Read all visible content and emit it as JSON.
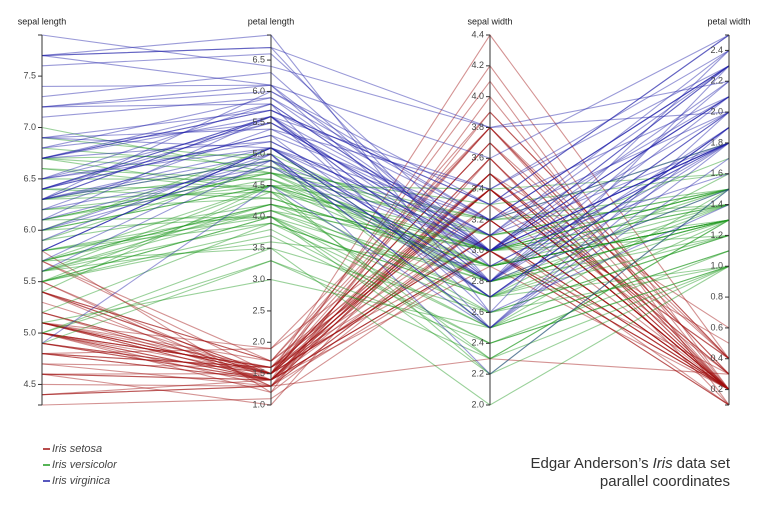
{
  "chart_data": {
    "type": "parallel",
    "title": [
      "Edgar Anderson’s",
      "Iris",
      "data set"
    ],
    "subtitle": "parallel coordinates",
    "dimensions": [
      {
        "name": "sepal length",
        "lim": [
          4.3,
          7.9
        ],
        "ticks": [
          4.5,
          {
            "value": 5,
            "label": "5.0"
          },
          5.5,
          {
            "value": 6,
            "label": "6.0"
          },
          6.5,
          {
            "value": 7,
            "label": "7.0"
          },
          7.5
        ]
      },
      {
        "name": "petal length",
        "lim": [
          1,
          6.9
        ],
        "ticks": [
          {
            "value": 1,
            "label": "1.0"
          },
          1.5,
          {
            "value": 2,
            "label": "2.0"
          },
          2.5,
          {
            "value": 3,
            "label": "3.0"
          },
          3.5,
          {
            "value": 4,
            "label": "4.0"
          },
          4.5,
          {
            "value": 5,
            "label": "5.0"
          },
          5.5,
          {
            "value": 6,
            "label": "6.0"
          },
          6.5
        ]
      },
      {
        "name": "sepal width",
        "lim": [
          2,
          4.4
        ],
        "ticks": [
          {
            "value": 2,
            "label": "2.0"
          },
          2.2,
          2.4,
          2.6,
          2.8,
          {
            "value": 3,
            "label": "3.0"
          },
          3.2,
          3.4,
          3.6,
          3.8,
          {
            "value": 4,
            "label": "4.0"
          },
          4.2,
          4.4
        ]
      },
      {
        "name": "petal width",
        "lim": [
          0.1,
          2.5
        ],
        "ticks": [
          0.2,
          0.4,
          0.6,
          0.8,
          {
            "value": 1,
            "label": "1.0"
          },
          1.2,
          1.4,
          1.6,
          1.8,
          {
            "value": 2,
            "label": "2.0"
          },
          2.2,
          2.4
        ]
      }
    ],
    "series": [
      {
        "name": "Iris setosa",
        "color": "#a01010",
        "rows": [
          [
            5.1,
            1.4,
            3.5,
            0.2
          ],
          [
            4.9,
            1.4,
            3.0,
            0.2
          ],
          [
            4.7,
            1.3,
            3.2,
            0.2
          ],
          [
            4.6,
            1.5,
            3.1,
            0.2
          ],
          [
            5.0,
            1.4,
            3.6,
            0.2
          ],
          [
            5.4,
            1.7,
            3.9,
            0.4
          ],
          [
            4.6,
            1.4,
            3.4,
            0.3
          ],
          [
            5.0,
            1.5,
            3.4,
            0.2
          ],
          [
            4.4,
            1.4,
            2.9,
            0.2
          ],
          [
            4.9,
            1.5,
            3.1,
            0.1
          ],
          [
            5.4,
            1.5,
            3.7,
            0.2
          ],
          [
            4.8,
            1.6,
            3.4,
            0.2
          ],
          [
            4.8,
            1.4,
            3.0,
            0.1
          ],
          [
            4.3,
            1.1,
            3.0,
            0.1
          ],
          [
            5.8,
            1.2,
            4.0,
            0.2
          ],
          [
            5.7,
            1.5,
            4.4,
            0.4
          ],
          [
            5.4,
            1.3,
            3.9,
            0.4
          ],
          [
            5.1,
            1.4,
            3.5,
            0.3
          ],
          [
            5.7,
            1.7,
            3.8,
            0.3
          ],
          [
            5.1,
            1.5,
            3.8,
            0.3
          ],
          [
            5.4,
            1.7,
            3.4,
            0.2
          ],
          [
            5.1,
            1.5,
            3.7,
            0.4
          ],
          [
            4.6,
            1.0,
            3.6,
            0.2
          ],
          [
            5.1,
            1.7,
            3.3,
            0.5
          ],
          [
            4.8,
            1.9,
            3.4,
            0.2
          ],
          [
            5.0,
            1.6,
            3.0,
            0.2
          ],
          [
            5.0,
            1.6,
            3.4,
            0.4
          ],
          [
            5.2,
            1.5,
            3.5,
            0.2
          ],
          [
            5.2,
            1.4,
            3.4,
            0.2
          ],
          [
            4.7,
            1.6,
            3.2,
            0.2
          ],
          [
            4.8,
            1.6,
            3.1,
            0.2
          ],
          [
            5.4,
            1.5,
            3.4,
            0.4
          ],
          [
            5.2,
            1.5,
            4.1,
            0.1
          ],
          [
            5.5,
            1.4,
            4.2,
            0.2
          ],
          [
            4.9,
            1.5,
            3.1,
            0.2
          ],
          [
            5.0,
            1.2,
            3.2,
            0.2
          ],
          [
            5.5,
            1.3,
            3.5,
            0.2
          ],
          [
            4.9,
            1.4,
            3.6,
            0.1
          ],
          [
            4.4,
            1.3,
            3.0,
            0.2
          ],
          [
            5.1,
            1.5,
            3.4,
            0.2
          ],
          [
            5.0,
            1.3,
            3.5,
            0.3
          ],
          [
            4.5,
            1.3,
            2.3,
            0.3
          ],
          [
            4.4,
            1.3,
            3.2,
            0.2
          ],
          [
            5.0,
            1.6,
            3.5,
            0.6
          ],
          [
            5.1,
            1.9,
            3.8,
            0.4
          ],
          [
            4.8,
            1.4,
            3.0,
            0.3
          ],
          [
            5.1,
            1.6,
            3.8,
            0.2
          ],
          [
            4.6,
            1.4,
            3.2,
            0.2
          ],
          [
            5.3,
            1.5,
            3.7,
            0.2
          ],
          [
            5.0,
            1.4,
            3.3,
            0.2
          ]
        ]
      },
      {
        "name": "Iris versicolor",
        "color": "#1e9a1e",
        "rows": [
          [
            7.0,
            4.7,
            3.2,
            1.4
          ],
          [
            6.4,
            4.5,
            3.2,
            1.5
          ],
          [
            6.9,
            4.9,
            3.1,
            1.5
          ],
          [
            5.5,
            4.0,
            2.3,
            1.3
          ],
          [
            6.5,
            4.6,
            2.8,
            1.5
          ],
          [
            5.7,
            4.5,
            2.8,
            1.3
          ],
          [
            6.3,
            4.7,
            3.3,
            1.6
          ],
          [
            4.9,
            3.3,
            2.4,
            1.0
          ],
          [
            6.6,
            4.6,
            2.9,
            1.3
          ],
          [
            5.2,
            3.9,
            2.7,
            1.4
          ],
          [
            5.0,
            3.5,
            2.0,
            1.0
          ],
          [
            5.9,
            4.2,
            3.0,
            1.5
          ],
          [
            6.0,
            4.0,
            2.2,
            1.0
          ],
          [
            6.1,
            4.7,
            2.9,
            1.4
          ],
          [
            5.6,
            3.6,
            2.9,
            1.3
          ],
          [
            6.7,
            4.4,
            3.1,
            1.4
          ],
          [
            5.6,
            4.5,
            3.0,
            1.5
          ],
          [
            5.8,
            4.1,
            2.7,
            1.0
          ],
          [
            6.2,
            4.5,
            2.2,
            1.5
          ],
          [
            5.6,
            3.9,
            2.5,
            1.1
          ],
          [
            5.9,
            4.8,
            3.2,
            1.8
          ],
          [
            6.1,
            4.0,
            2.8,
            1.3
          ],
          [
            6.3,
            4.9,
            2.5,
            1.5
          ],
          [
            6.1,
            4.7,
            2.8,
            1.2
          ],
          [
            6.4,
            4.3,
            2.9,
            1.3
          ],
          [
            6.6,
            4.4,
            3.0,
            1.4
          ],
          [
            6.8,
            4.8,
            2.8,
            1.4
          ],
          [
            6.7,
            5.0,
            3.0,
            1.7
          ],
          [
            6.0,
            4.5,
            2.9,
            1.5
          ],
          [
            5.7,
            3.5,
            2.6,
            1.0
          ],
          [
            5.5,
            3.8,
            2.4,
            1.1
          ],
          [
            5.5,
            3.7,
            2.4,
            1.0
          ],
          [
            5.8,
            3.9,
            2.7,
            1.2
          ],
          [
            6.0,
            5.1,
            2.7,
            1.6
          ],
          [
            5.4,
            4.5,
            3.0,
            1.5
          ],
          [
            6.0,
            4.5,
            3.4,
            1.6
          ],
          [
            6.7,
            4.7,
            3.1,
            1.5
          ],
          [
            6.3,
            4.4,
            2.3,
            1.3
          ],
          [
            5.6,
            4.1,
            3.0,
            1.3
          ],
          [
            5.5,
            4.0,
            2.5,
            1.3
          ],
          [
            5.5,
            4.4,
            2.6,
            1.2
          ],
          [
            6.1,
            4.6,
            3.0,
            1.4
          ],
          [
            5.8,
            4.0,
            2.6,
            1.2
          ],
          [
            5.0,
            3.3,
            2.3,
            1.0
          ],
          [
            5.6,
            4.2,
            2.7,
            1.3
          ],
          [
            5.7,
            4.2,
            3.0,
            1.2
          ],
          [
            5.7,
            4.2,
            2.9,
            1.3
          ],
          [
            6.2,
            4.3,
            2.9,
            1.3
          ],
          [
            5.1,
            3.0,
            2.5,
            1.1
          ],
          [
            5.7,
            4.1,
            2.8,
            1.3
          ]
        ]
      },
      {
        "name": "Iris virginica",
        "color": "#2020a8",
        "rows": [
          [
            6.3,
            6.0,
            3.3,
            2.5
          ],
          [
            5.8,
            5.1,
            2.7,
            1.9
          ],
          [
            7.1,
            5.9,
            3.0,
            2.1
          ],
          [
            6.3,
            5.6,
            2.9,
            1.8
          ],
          [
            6.5,
            5.8,
            3.0,
            2.2
          ],
          [
            7.6,
            6.6,
            3.0,
            2.1
          ],
          [
            4.9,
            4.5,
            2.5,
            1.7
          ],
          [
            7.3,
            6.3,
            2.9,
            1.8
          ],
          [
            6.7,
            5.8,
            2.5,
            1.8
          ],
          [
            7.2,
            6.1,
            3.6,
            2.5
          ],
          [
            6.5,
            5.1,
            3.2,
            2.0
          ],
          [
            6.4,
            5.3,
            2.7,
            1.9
          ],
          [
            6.8,
            5.5,
            3.0,
            2.1
          ],
          [
            5.7,
            5.0,
            2.5,
            2.0
          ],
          [
            5.8,
            5.1,
            2.8,
            2.4
          ],
          [
            6.4,
            5.3,
            3.2,
            2.3
          ],
          [
            6.5,
            5.5,
            3.0,
            1.8
          ],
          [
            7.7,
            6.7,
            3.8,
            2.2
          ],
          [
            7.7,
            6.9,
            2.6,
            2.3
          ],
          [
            6.0,
            5.0,
            2.2,
            1.5
          ],
          [
            6.9,
            5.7,
            3.2,
            2.3
          ],
          [
            5.6,
            4.9,
            2.8,
            2.0
          ],
          [
            7.7,
            6.7,
            2.8,
            2.0
          ],
          [
            6.3,
            4.9,
            2.7,
            1.8
          ],
          [
            6.7,
            5.7,
            3.3,
            2.1
          ],
          [
            7.2,
            6.0,
            3.2,
            1.8
          ],
          [
            6.2,
            4.8,
            2.8,
            1.8
          ],
          [
            6.1,
            4.9,
            3.0,
            1.8
          ],
          [
            6.4,
            5.6,
            2.8,
            2.1
          ],
          [
            7.2,
            5.8,
            3.0,
            1.6
          ],
          [
            7.4,
            6.1,
            2.8,
            1.9
          ],
          [
            7.9,
            6.4,
            3.8,
            2.0
          ],
          [
            6.4,
            5.6,
            2.8,
            2.2
          ],
          [
            6.3,
            5.1,
            2.8,
            1.5
          ],
          [
            6.1,
            5.6,
            2.6,
            1.4
          ],
          [
            7.7,
            6.1,
            3.0,
            2.3
          ],
          [
            6.3,
            5.6,
            3.4,
            2.4
          ],
          [
            6.4,
            5.5,
            3.1,
            1.8
          ],
          [
            6.0,
            4.8,
            3.0,
            1.8
          ],
          [
            6.9,
            5.4,
            3.1,
            2.1
          ],
          [
            6.7,
            5.6,
            3.1,
            2.4
          ],
          [
            6.9,
            5.1,
            3.1,
            2.3
          ],
          [
            5.8,
            5.1,
            2.7,
            1.9
          ],
          [
            6.8,
            5.9,
            3.2,
            2.3
          ],
          [
            6.7,
            5.7,
            3.3,
            2.5
          ],
          [
            6.7,
            5.2,
            3.0,
            2.3
          ],
          [
            6.3,
            5.0,
            2.5,
            1.9
          ],
          [
            6.5,
            5.2,
            3.0,
            2.0
          ],
          [
            6.2,
            5.4,
            3.4,
            2.3
          ],
          [
            5.9,
            5.1,
            3.0,
            1.8
          ]
        ]
      }
    ]
  }
}
